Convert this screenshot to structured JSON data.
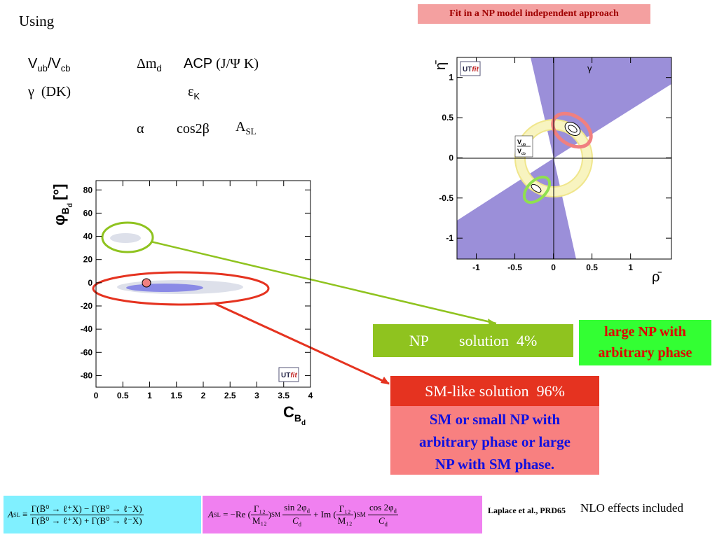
{
  "header": {
    "intro": "Using",
    "banner": "Fit in a NP model independent approach"
  },
  "constraints": {
    "vub": {
      "base": "V",
      "sub": "ub"
    },
    "vcb": {
      "base": "/V",
      "sub": "cb"
    },
    "dmd": {
      "base": "Δm",
      "sub": "d"
    },
    "acp": "ACP",
    "acp_mode": "(J/Ψ K)",
    "gamma": "γ",
    "gamma_mode": "(DK)",
    "epsk": {
      "base": "ε",
      "sub": "K"
    },
    "alpha": "α",
    "cos2beta": "cos2β",
    "asl": {
      "base": "A",
      "sub": "SL"
    }
  },
  "left_plot": {
    "ylabel": {
      "symbol": "φ",
      "sub": "B",
      "subsub": "d",
      "unit": "[°]"
    },
    "xlabel": {
      "symbol": "C",
      "sub": "B",
      "subsub": "d"
    },
    "xlim": [
      0,
      4
    ],
    "ylim": [
      -90,
      88
    ],
    "xticks": [
      0,
      0.5,
      1,
      1.5,
      2,
      2.5,
      3,
      3.5,
      4
    ],
    "yticks": [
      -80,
      -60,
      -40,
      -20,
      0,
      20,
      40,
      60,
      80
    ],
    "logo": [
      "UT",
      "fit"
    ]
  },
  "right_plot": {
    "ylabel": "η̄",
    "xlabel": "ρ̄",
    "xlim": [
      -1.25,
      1.53
    ],
    "ylim": [
      -1.26,
      1.25
    ],
    "xticks": [
      -1,
      -0.5,
      0,
      0.5,
      1
    ],
    "yticks": [
      -1,
      -0.5,
      0,
      0.5,
      1
    ],
    "gamma_label": "γ",
    "ratio_label": {
      "num": "V",
      "num_sub": "ub",
      "den": "V",
      "den_sub": "cb"
    },
    "logo": [
      "UT",
      "fit"
    ]
  },
  "np_box": "NP        solution  4%",
  "np_note": [
    "large NP with",
    "arbitrary phase"
  ],
  "sm_box": "SM-like solution  96%",
  "sm_note": [
    "SM or small NP with",
    "arbitrary phase or large",
    "NP with SM phase."
  ],
  "formula1": {
    "lhs": "A",
    "lhs_sub": "SL",
    "rel": "≡",
    "num": "Γ(B̄⁰ → ℓ⁺X) − Γ(B⁰ → ℓ⁻X)",
    "den": "Γ(B̄⁰ → ℓ⁺X) + Γ(B⁰ → ℓ⁻X)"
  },
  "formula2": {
    "lhs": "A",
    "lhs_sub": "SL",
    "op1": "= −Re",
    "op2": "+ Im",
    "ratio_num": "Γ₁₂",
    "ratio_den": "M₁₂",
    "sup": "SM",
    "f1_num": "sin 2φ",
    "f2_num": "cos 2φ",
    "num_sub": "d",
    "den": "C",
    "den_sub": "d"
  },
  "reference": "Laplace et al., PRD65",
  "note": "NLO effects included"
}
